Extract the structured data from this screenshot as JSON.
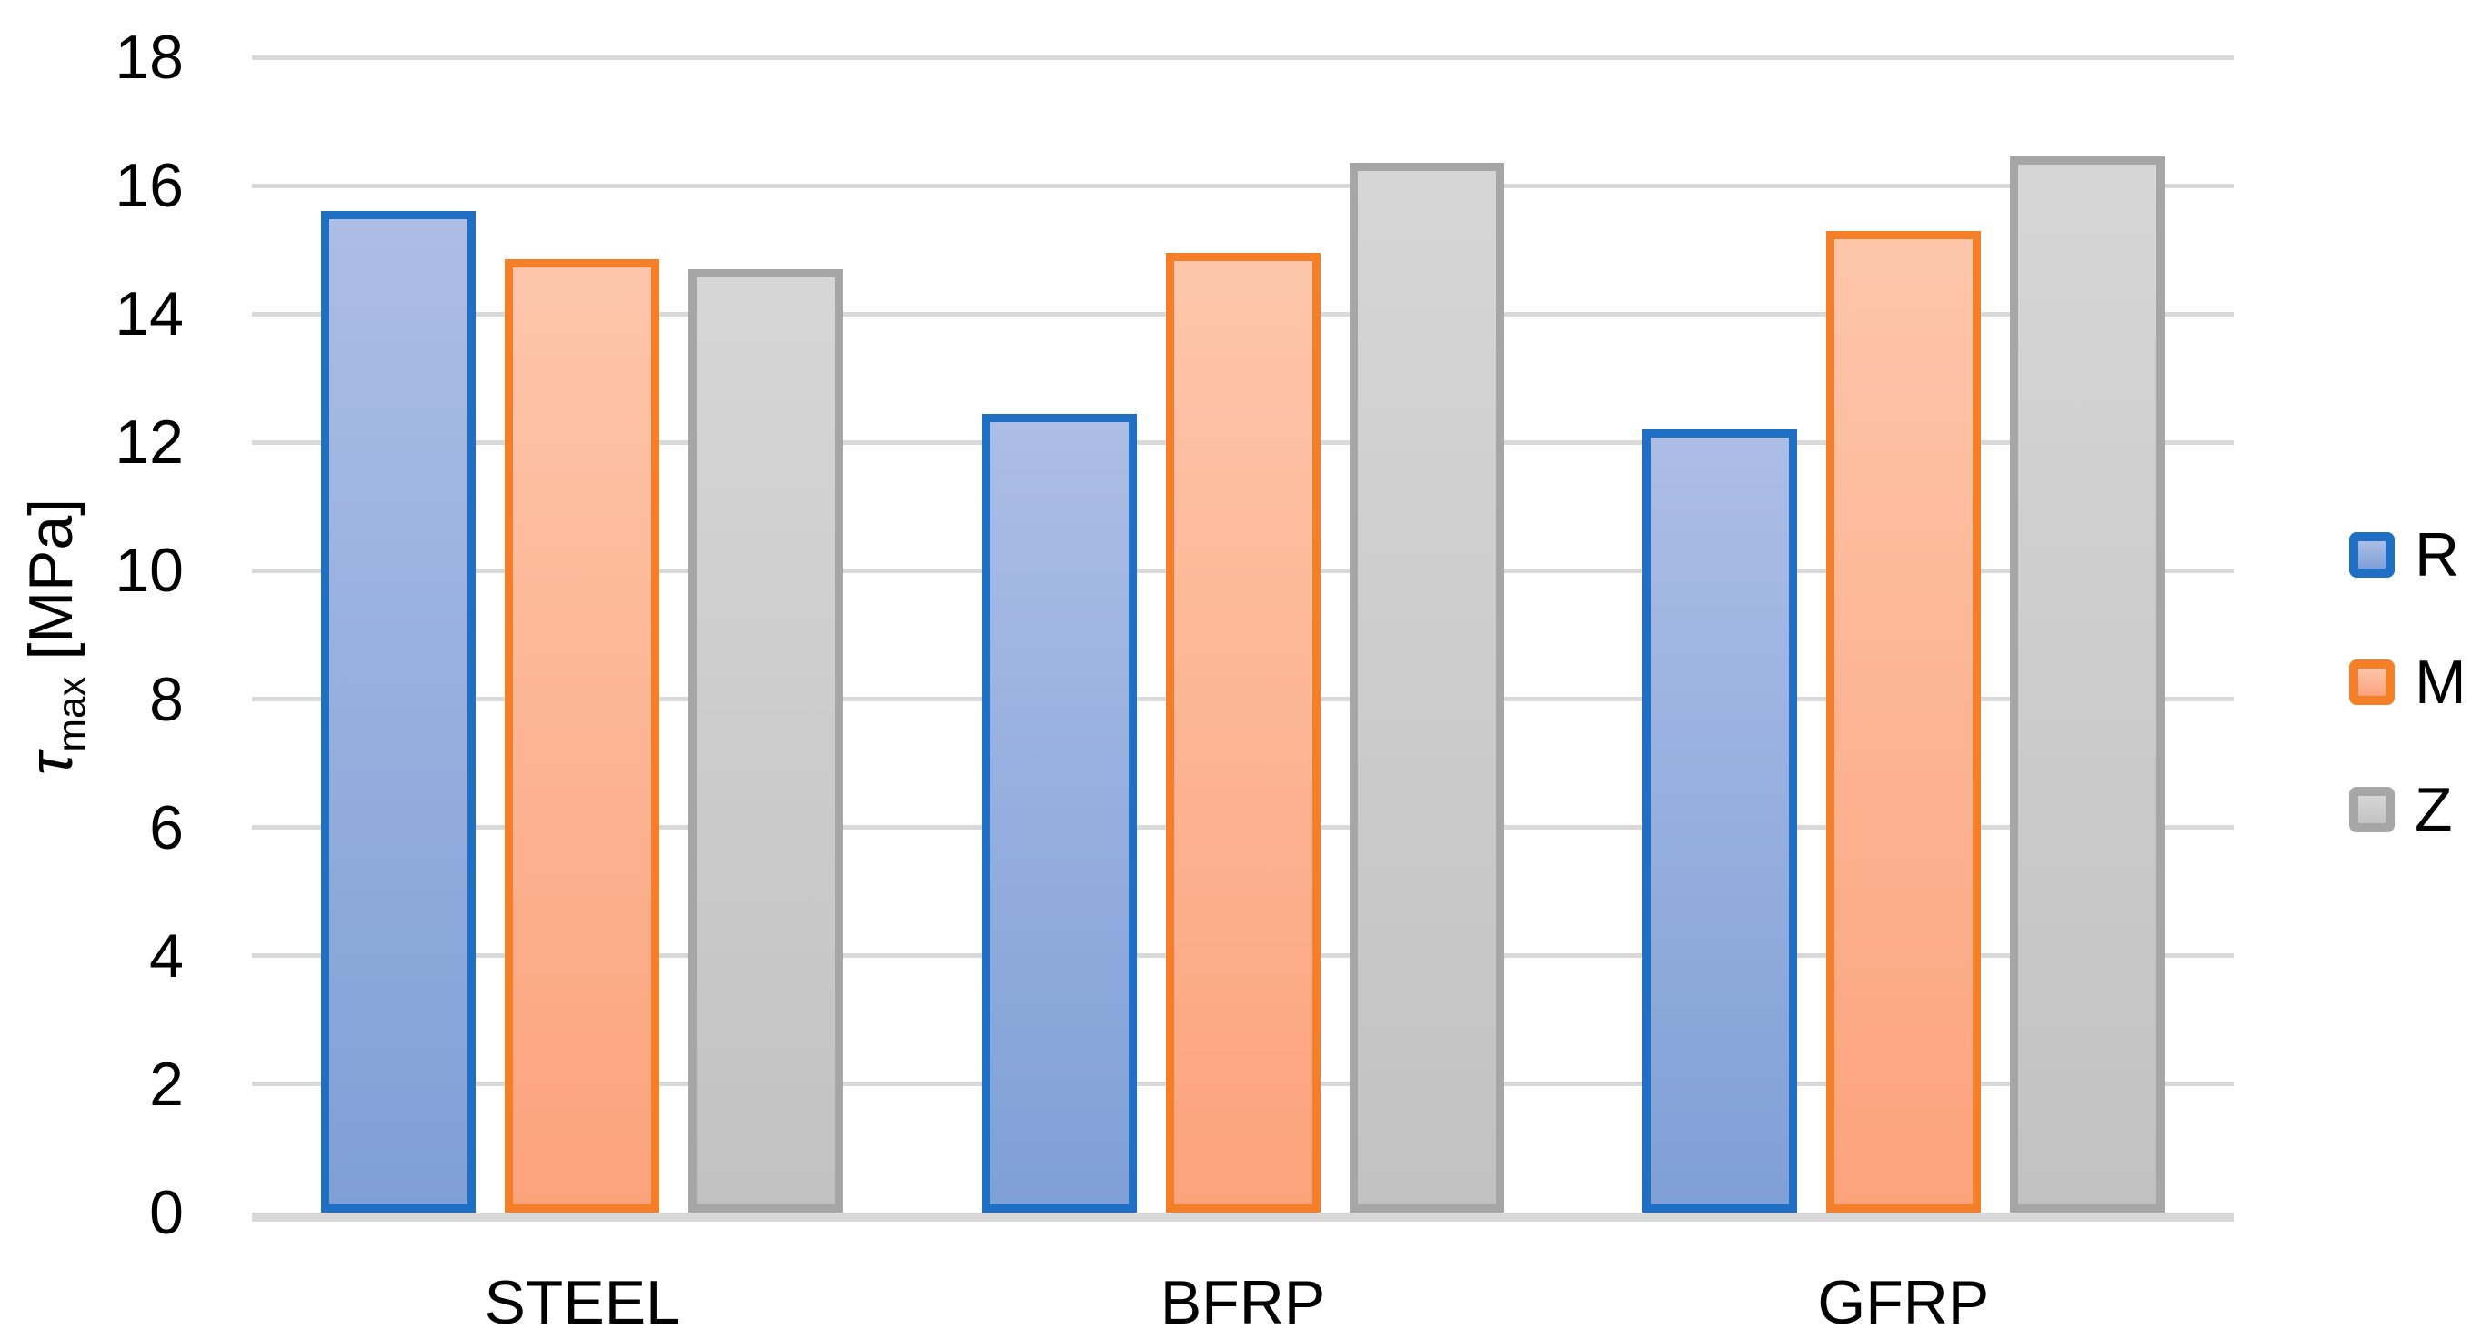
{
  "chart_data": {
    "type": "bar",
    "title": "",
    "categories": [
      "STEEL",
      "BFRP",
      "GFRP"
    ],
    "series": [
      {
        "name": "R",
        "values": [
          15.6,
          12.45,
          12.2
        ],
        "border_color": "#1F6FC4",
        "fill_top": "#ACBDE6",
        "fill_bottom": "#7FA0D6"
      },
      {
        "name": "M",
        "values": [
          14.85,
          14.95,
          15.3
        ],
        "border_color": "#F57E28",
        "fill_top": "#FDC6AB",
        "fill_bottom": "#FCA37C"
      },
      {
        "name": "Z",
        "values": [
          14.7,
          16.35,
          16.45
        ],
        "border_color": "#A6A6A6",
        "fill_top": "#D6D6D6",
        "fill_bottom": "#C2C2C2"
      }
    ],
    "ylabel": {
      "symbol": "τ",
      "subscript": "max",
      "unit": "[MPa]"
    },
    "ylim": [
      0,
      18
    ],
    "ytick_step": 2,
    "grid": true,
    "gridline_color": "#D9D9D9",
    "axis_line_color": "#D9D9D9",
    "text_color": "#000000",
    "legend_position": "right",
    "legend_labels": [
      "R",
      "M",
      "Z"
    ]
  }
}
